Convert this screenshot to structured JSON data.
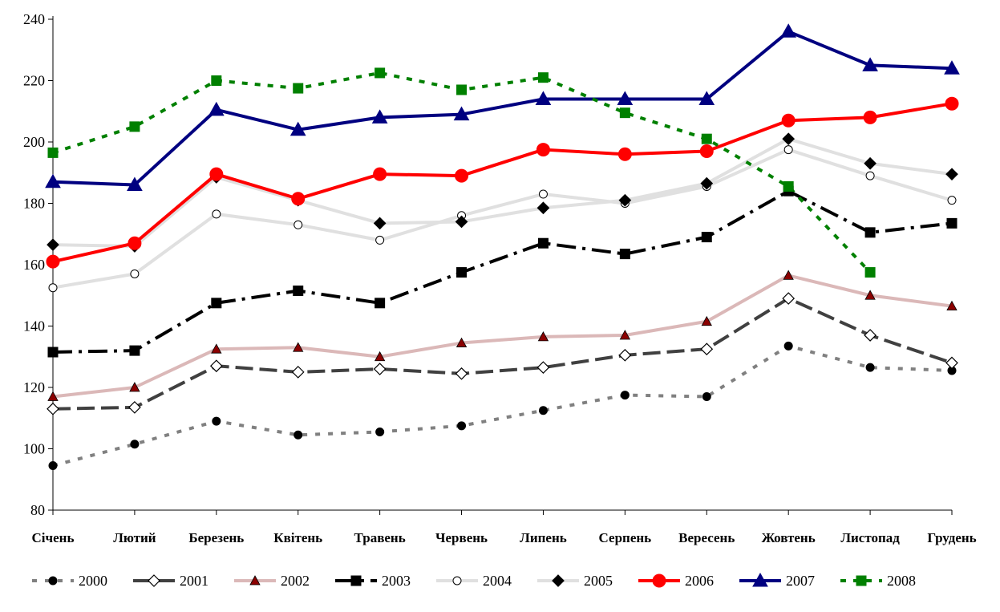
{
  "chart_data": {
    "type": "line",
    "title": "",
    "xlabel": "",
    "ylabel": "",
    "ylim": [
      80,
      240
    ],
    "yticks": [
      80,
      100,
      120,
      140,
      160,
      180,
      200,
      220,
      240
    ],
    "grid": false,
    "legend_position": "bottom",
    "categories": [
      "Січень",
      "Лютий",
      "Березень",
      "Квітень",
      "Травень",
      "Червень",
      "Липень",
      "Серпень",
      "Вересень",
      "Жовтень",
      "Листопад",
      "Грудень"
    ],
    "series": [
      {
        "name": "2000",
        "color": "#808080",
        "line": "dotted",
        "width": 4,
        "marker": "circle",
        "marker_fill": "#000000",
        "marker_stroke": "#000000",
        "values": [
          94.5,
          101.5,
          109,
          104.5,
          105.5,
          107.5,
          112.5,
          117.5,
          117,
          133.5,
          126.5,
          125.5
        ]
      },
      {
        "name": "2001",
        "color": "#404040",
        "line": "dashed",
        "width": 4,
        "marker": "diamond",
        "marker_fill": "#ffffff",
        "marker_stroke": "#000000",
        "values": [
          113,
          113.5,
          127,
          125,
          126,
          124.5,
          126.5,
          130.5,
          132.5,
          149,
          137,
          128
        ]
      },
      {
        "name": "2002",
        "color": "#dbb8b8",
        "line": "solid",
        "width": 4,
        "marker": "triangle",
        "marker_fill": "#8b0000",
        "marker_stroke": "#000000",
        "values": [
          117,
          120,
          132.5,
          133,
          130,
          134.5,
          136.5,
          137,
          141.5,
          156.5,
          150,
          146.5
        ]
      },
      {
        "name": "2003",
        "color": "#000000",
        "line": "dashdot",
        "width": 4,
        "marker": "square",
        "marker_fill": "#000000",
        "marker_stroke": "#000000",
        "values": [
          131.5,
          132,
          147.5,
          151.5,
          147.5,
          157.5,
          167,
          163.5,
          169,
          184,
          170.5,
          173.5
        ]
      },
      {
        "name": "2004",
        "color": "#e0e0e0",
        "line": "solid",
        "width": 4,
        "marker": "circle",
        "marker_fill": "#ffffff",
        "marker_stroke": "#000000",
        "values": [
          152.5,
          157,
          176.5,
          173,
          168,
          176,
          183,
          180,
          185.5,
          197.5,
          189,
          181
        ]
      },
      {
        "name": "2005",
        "color": "#e0e0e0",
        "line": "solid",
        "width": 4,
        "marker": "diamond",
        "marker_fill": "#000000",
        "marker_stroke": "#000000",
        "values": [
          166.5,
          166,
          188.5,
          181,
          173.5,
          174,
          178.5,
          181,
          186.5,
          201,
          193,
          189.5
        ]
      },
      {
        "name": "2006",
        "color": "#ff0000",
        "line": "solid",
        "width": 4,
        "marker": "circle-big",
        "marker_fill": "#ff0000",
        "marker_stroke": "#ff0000",
        "values": [
          161,
          167,
          189.5,
          181.5,
          189.5,
          189,
          197.5,
          196,
          197,
          207,
          208,
          212.5
        ]
      },
      {
        "name": "2007",
        "color": "#000080",
        "line": "solid",
        "width": 4,
        "marker": "triangle-big",
        "marker_fill": "#000080",
        "marker_stroke": "#000080",
        "values": [
          187,
          186,
          210.5,
          204,
          208,
          209,
          214,
          214,
          214,
          236,
          225,
          224
        ]
      },
      {
        "name": "2008",
        "color": "#008000",
        "line": "dotted-green",
        "width": 4,
        "marker": "square",
        "marker_fill": "#008000",
        "marker_stroke": "#008000",
        "values": [
          196.5,
          205,
          220,
          217.5,
          222.5,
          217,
          221,
          209.5,
          201,
          185.5,
          157.5,
          null
        ]
      }
    ]
  }
}
